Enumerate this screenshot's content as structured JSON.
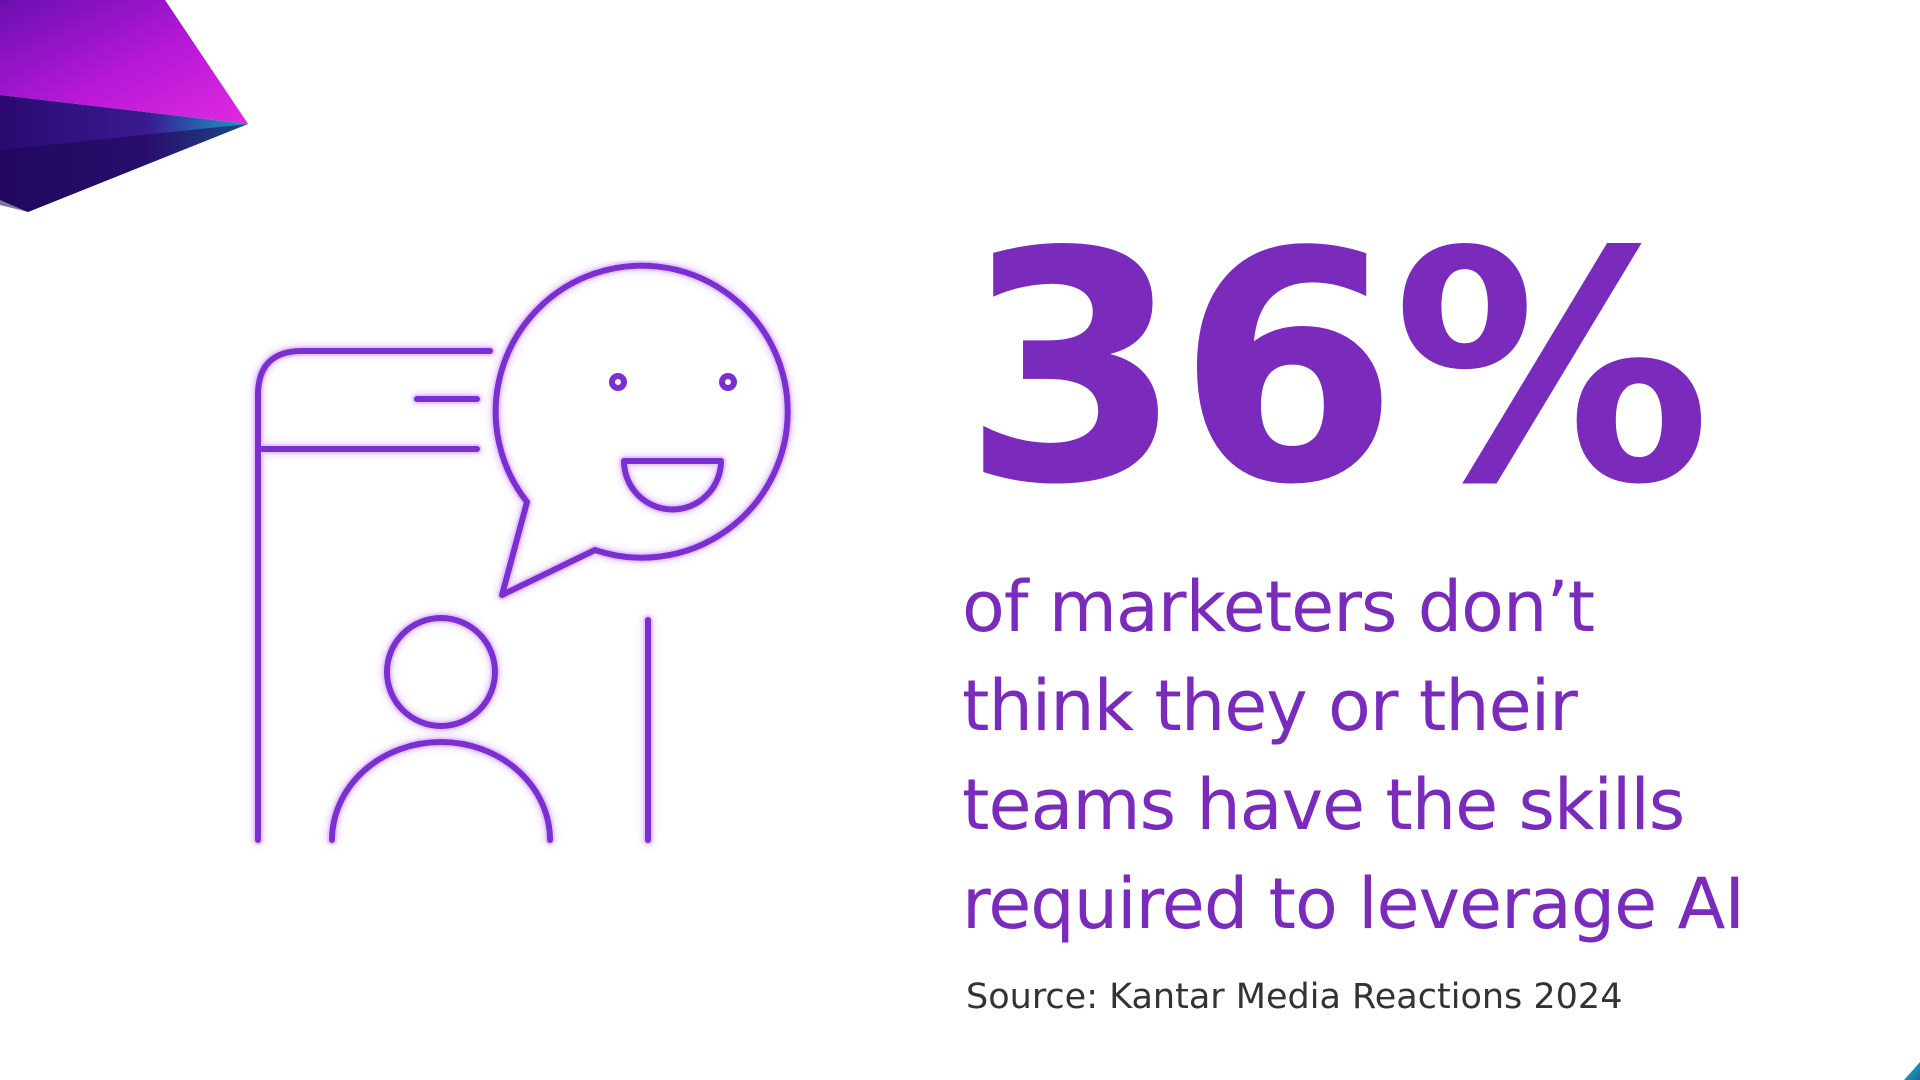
{
  "stat": {
    "value": "36%",
    "description_lines": [
      "of marketers don’t",
      "think they or their",
      "teams have the skills",
      "required to leverage AI"
    ]
  },
  "source": "Source: Kantar Media Reactions 2024",
  "icons": {
    "illustration": "phone-chat-person-icon",
    "corner": "gradient-prism-shape"
  },
  "colors": {
    "accent": "#7a2bbb",
    "icon_stroke": "#7b2fd0",
    "icon_glow": "#c58cff",
    "source_text": "#333333",
    "background": "#ffffff"
  }
}
